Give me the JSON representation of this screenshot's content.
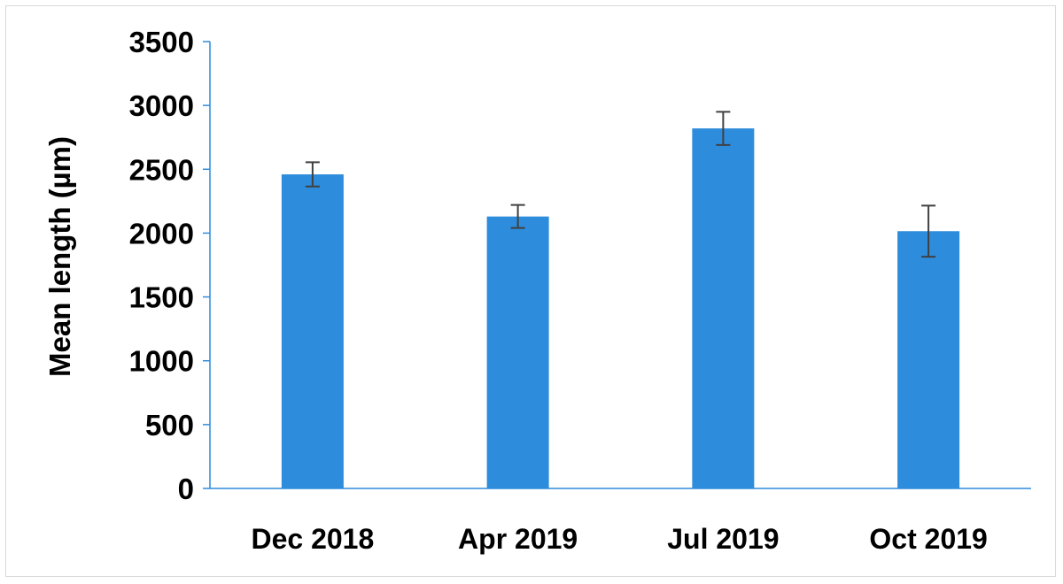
{
  "chart_data": {
    "type": "bar",
    "title": "",
    "xlabel": "",
    "ylabel": "Mean length (µm)",
    "categories": [
      "Dec 2018",
      "Apr 2019",
      "Jul 2019",
      "Oct 2019"
    ],
    "values": [
      2460,
      2130,
      2820,
      2015
    ],
    "error": [
      95,
      90,
      130,
      200
    ],
    "ylim": [
      0,
      3500
    ],
    "yticks": [
      0,
      500,
      1000,
      1500,
      2000,
      2500,
      3000,
      3500
    ],
    "grid": false,
    "legend": "none",
    "colors": {
      "bar": "#2e8cdc",
      "axis": "#2e8cdc",
      "error_bar": "#404040"
    }
  }
}
